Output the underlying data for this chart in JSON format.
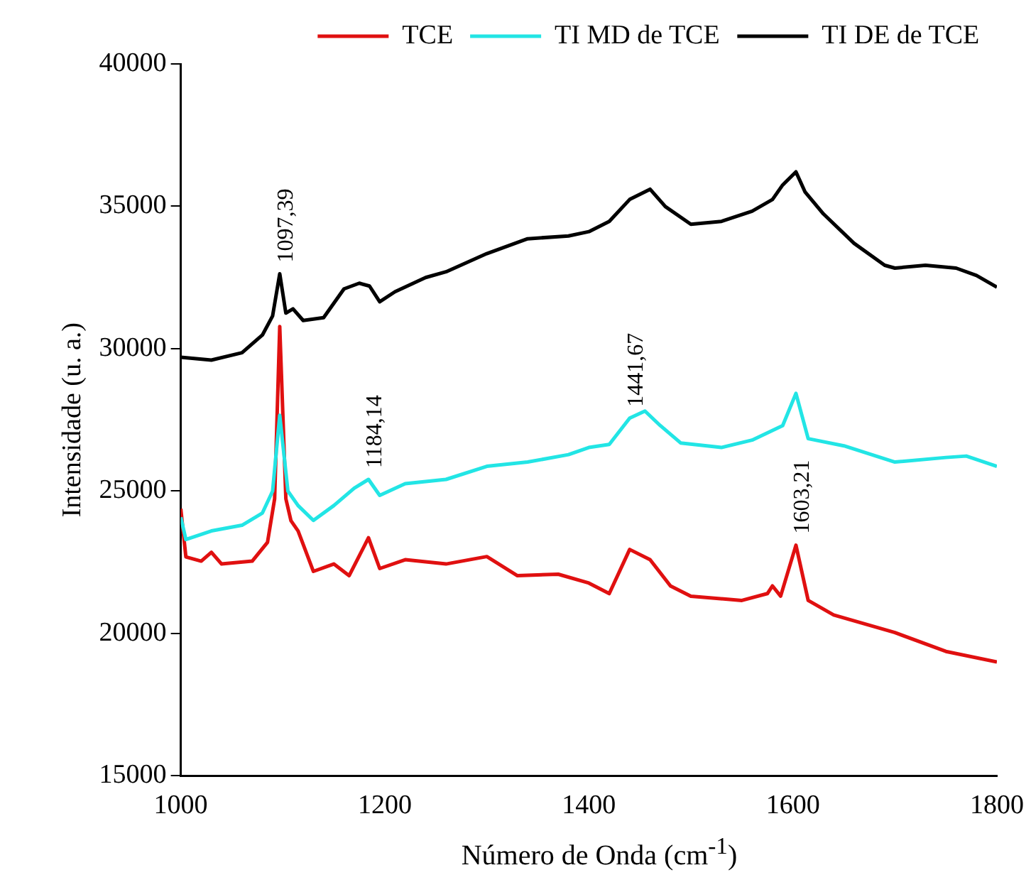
{
  "chart_data": {
    "type": "line",
    "xlabel": "Número de Onda (cm$^{-1}$)",
    "ylabel": "Intensidade (u. a.)",
    "xlim": [
      1000,
      1800
    ],
    "xticks": [
      1000,
      1200,
      1400,
      1600,
      1800
    ],
    "ylim": [
      15000,
      40000
    ],
    "yticks": [
      15000,
      20000,
      25000,
      30000,
      35000,
      40000
    ],
    "grid": false,
    "legend": "top",
    "marker": "none",
    "line_style": "solid",
    "annotations": [
      {
        "text": "1097,39",
        "x": 1097,
        "y": 32630
      },
      {
        "text": "1184,14",
        "x": 1184,
        "y": 25410
      },
      {
        "text": "1441,67",
        "x": 1440,
        "y": 27560
      },
      {
        "text": "1603,21",
        "x": 1603,
        "y": 23100
      }
    ],
    "series": [
      {
        "name": "TCE",
        "color": "#e01010",
        "x": [
          1000,
          1005,
          1020,
          1030,
          1040,
          1070,
          1085,
          1092,
          1097,
          1103,
          1108,
          1115,
          1130,
          1150,
          1165,
          1184,
          1195,
          1220,
          1260,
          1300,
          1330,
          1370,
          1400,
          1420,
          1440,
          1460,
          1480,
          1500,
          1550,
          1575,
          1580,
          1588,
          1603,
          1615,
          1640,
          1700,
          1750,
          1800
        ],
        "values": [
          24380,
          22690,
          22540,
          22850,
          22440,
          22540,
          23200,
          24730,
          30780,
          24730,
          23960,
          23600,
          22180,
          22440,
          22030,
          23360,
          22280,
          22590,
          22440,
          22700,
          22030,
          22080,
          21770,
          21400,
          22950,
          22590,
          21670,
          21310,
          21160,
          21400,
          21670,
          21310,
          23100,
          21160,
          20650,
          20030,
          19370,
          19000
        ]
      },
      {
        "name": "TI MD de TCE",
        "color": "#22e5e5",
        "x": [
          1000,
          1005,
          1030,
          1060,
          1080,
          1090,
          1097,
          1105,
          1115,
          1130,
          1150,
          1170,
          1184,
          1195,
          1220,
          1260,
          1300,
          1340,
          1380,
          1400,
          1420,
          1440,
          1455,
          1470,
          1490,
          1530,
          1560,
          1590,
          1603,
          1615,
          1650,
          1700,
          1750,
          1770,
          1800
        ],
        "values": [
          24080,
          23300,
          23600,
          23800,
          24230,
          25000,
          27660,
          25000,
          24490,
          23970,
          24490,
          25100,
          25410,
          24850,
          25260,
          25410,
          25870,
          26020,
          26280,
          26530,
          26640,
          27560,
          27810,
          27300,
          26690,
          26530,
          26790,
          27300,
          28430,
          26840,
          26590,
          26020,
          26180,
          26230,
          25870
        ]
      },
      {
        "name": "TI DE de TCE",
        "color": "#000000",
        "x": [
          1000,
          1030,
          1060,
          1080,
          1090,
          1097,
          1103,
          1110,
          1120,
          1140,
          1160,
          1175,
          1185,
          1195,
          1210,
          1240,
          1260,
          1300,
          1340,
          1380,
          1400,
          1420,
          1440,
          1460,
          1475,
          1500,
          1530,
          1560,
          1580,
          1590,
          1603,
          1612,
          1630,
          1660,
          1690,
          1700,
          1730,
          1760,
          1780,
          1800
        ],
        "values": [
          29700,
          29600,
          29860,
          30480,
          31150,
          32630,
          31250,
          31400,
          30990,
          31090,
          32100,
          32300,
          32200,
          31650,
          32000,
          32500,
          32700,
          33340,
          33860,
          33960,
          34110,
          34470,
          35240,
          35600,
          34990,
          34370,
          34470,
          34830,
          35240,
          35750,
          36210,
          35500,
          34730,
          33700,
          32930,
          32830,
          32930,
          32830,
          32570,
          32160
        ]
      }
    ]
  }
}
